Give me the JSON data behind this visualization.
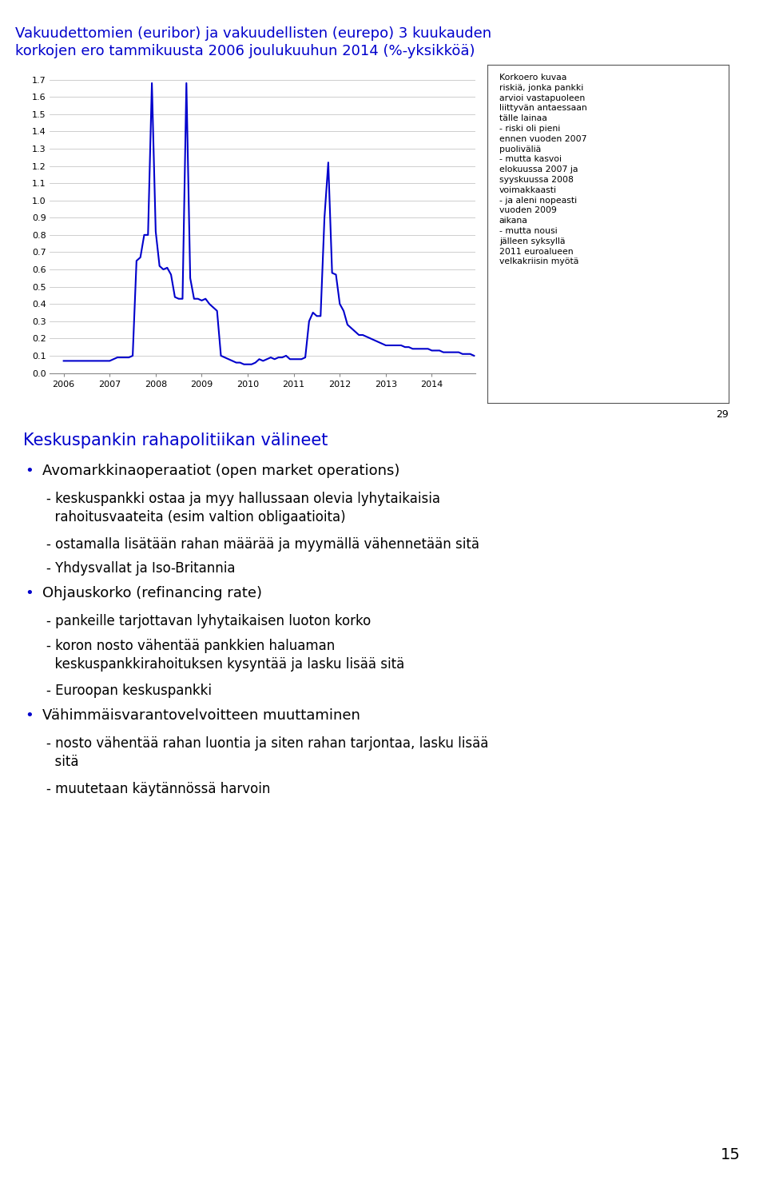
{
  "title_line1": "Vakuudettomien (euribor) ja vakuudellisten (eurepo) 3 kuukauden",
  "title_line2": "korkojen ero tammikuusta 2006 joulukuuhun 2014 (%-yksikköä)",
  "title_color": "#0000CC",
  "title_fontsize": 13.0,
  "line_color": "#0000CC",
  "line_width": 1.5,
  "yticks": [
    0.0,
    0.1,
    0.2,
    0.3,
    0.4,
    0.5,
    0.6,
    0.7,
    0.8,
    0.9,
    1.0,
    1.1,
    1.2,
    1.3,
    1.4,
    1.5,
    1.6,
    1.7
  ],
  "xtick_labels": [
    "2006",
    "2007",
    "2008",
    "2009",
    "2010",
    "2011",
    "2012",
    "2013",
    "2014"
  ],
  "annotation_box_text": "Korkoero kuvaa\nriskiä, jonka pankki\narvioi vastapuoleen\nliittyvän antaessaan\ntälle lainaa\n- riski oli pieni\nennen vuoden 2007\npuoliväliä\n- mutta kasvoi\nelokuussa 2007 ja\nsyyskuussa 2008\nvoimakkaasti\n- ja aleni nopeasti\nvuoden 2009\naikana\n- mutta nousi\njälleen syksyllä\n2011 euroalueen\nvelkakriisin myötä",
  "page_number": "29",
  "section_header": "Keskuspankin rahapolitiikan välineet",
  "section_header_color": "#0000CC",
  "section_header_fontsize": 15,
  "bullet_fontsize": 13,
  "sub_fontsize": 12,
  "page_num_bottom": "15",
  "body_lines": [
    {
      "type": "bullet",
      "text": "Avomarkkinaoperaatiot (open market operations)"
    },
    {
      "type": "sub",
      "text": "- keskuspankki ostaa ja myy hallussaan olevia lyhytaikaisia\n  rahoitusvaateita (esim valtion obligaatioita)"
    },
    {
      "type": "sub",
      "text": "- ostamalla lisätään rahan määrää ja myymällä vähennetään sitä"
    },
    {
      "type": "sub",
      "text": "- Yhdysvallat ja Iso-Britannia"
    },
    {
      "type": "bullet",
      "text": "Ohjauskorko (refinancing rate)"
    },
    {
      "type": "sub",
      "text": "- pankeille tarjottavan lyhytaikaisen luoton korko"
    },
    {
      "type": "sub",
      "text": "- koron nosto vähentää pankkien haluaman\n  keskuspankkirahoituksen kysyntää ja lasku lisää sitä"
    },
    {
      "type": "sub",
      "text": "- Euroopan keskuspankki"
    },
    {
      "type": "bullet",
      "text": "Vähimmäisvarantovelvoitteen muuttaminen"
    },
    {
      "type": "sub",
      "text": "- nosto vähentää rahan luontia ja siten rahan tarjontaa, lasku lisää\n  sitä"
    },
    {
      "type": "sub",
      "text": "- muutetaan käytännössä harvoin"
    }
  ],
  "x_data": [
    2006.0,
    2006.083,
    2006.167,
    2006.25,
    2006.333,
    2006.417,
    2006.5,
    2006.583,
    2006.667,
    2006.75,
    2006.833,
    2006.917,
    2007.0,
    2007.083,
    2007.167,
    2007.25,
    2007.333,
    2007.417,
    2007.5,
    2007.583,
    2007.667,
    2007.75,
    2007.833,
    2007.917,
    2008.0,
    2008.083,
    2008.167,
    2008.25,
    2008.333,
    2008.417,
    2008.5,
    2008.583,
    2008.667,
    2008.75,
    2008.833,
    2008.917,
    2009.0,
    2009.083,
    2009.167,
    2009.25,
    2009.333,
    2009.417,
    2009.5,
    2009.583,
    2009.667,
    2009.75,
    2009.833,
    2009.917,
    2010.0,
    2010.083,
    2010.167,
    2010.25,
    2010.333,
    2010.417,
    2010.5,
    2010.583,
    2010.667,
    2010.75,
    2010.833,
    2010.917,
    2011.0,
    2011.083,
    2011.167,
    2011.25,
    2011.333,
    2011.417,
    2011.5,
    2011.583,
    2011.667,
    2011.75,
    2011.833,
    2011.917,
    2012.0,
    2012.083,
    2012.167,
    2012.25,
    2012.333,
    2012.417,
    2012.5,
    2012.583,
    2012.667,
    2012.75,
    2012.833,
    2012.917,
    2013.0,
    2013.083,
    2013.167,
    2013.25,
    2013.333,
    2013.417,
    2013.5,
    2013.583,
    2013.667,
    2013.75,
    2013.833,
    2013.917,
    2014.0,
    2014.083,
    2014.167,
    2014.25,
    2014.333,
    2014.417,
    2014.5,
    2014.583,
    2014.667,
    2014.75,
    2014.833,
    2014.917
  ],
  "y_data": [
    0.07,
    0.07,
    0.07,
    0.07,
    0.07,
    0.07,
    0.07,
    0.07,
    0.07,
    0.07,
    0.07,
    0.07,
    0.07,
    0.08,
    0.09,
    0.09,
    0.09,
    0.09,
    0.1,
    0.65,
    0.67,
    0.8,
    0.8,
    1.68,
    0.82,
    0.62,
    0.6,
    0.61,
    0.57,
    0.44,
    0.43,
    0.43,
    1.68,
    0.55,
    0.43,
    0.43,
    0.42,
    0.43,
    0.4,
    0.38,
    0.36,
    0.1,
    0.09,
    0.08,
    0.07,
    0.06,
    0.06,
    0.05,
    0.05,
    0.05,
    0.06,
    0.08,
    0.07,
    0.08,
    0.09,
    0.08,
    0.09,
    0.09,
    0.1,
    0.08,
    0.08,
    0.08,
    0.08,
    0.09,
    0.3,
    0.35,
    0.33,
    0.33,
    0.9,
    1.22,
    0.58,
    0.57,
    0.4,
    0.36,
    0.28,
    0.26,
    0.24,
    0.22,
    0.22,
    0.21,
    0.2,
    0.19,
    0.18,
    0.17,
    0.16,
    0.16,
    0.16,
    0.16,
    0.16,
    0.15,
    0.15,
    0.14,
    0.14,
    0.14,
    0.14,
    0.14,
    0.13,
    0.13,
    0.13,
    0.12,
    0.12,
    0.12,
    0.12,
    0.12,
    0.11,
    0.11,
    0.11,
    0.1
  ]
}
